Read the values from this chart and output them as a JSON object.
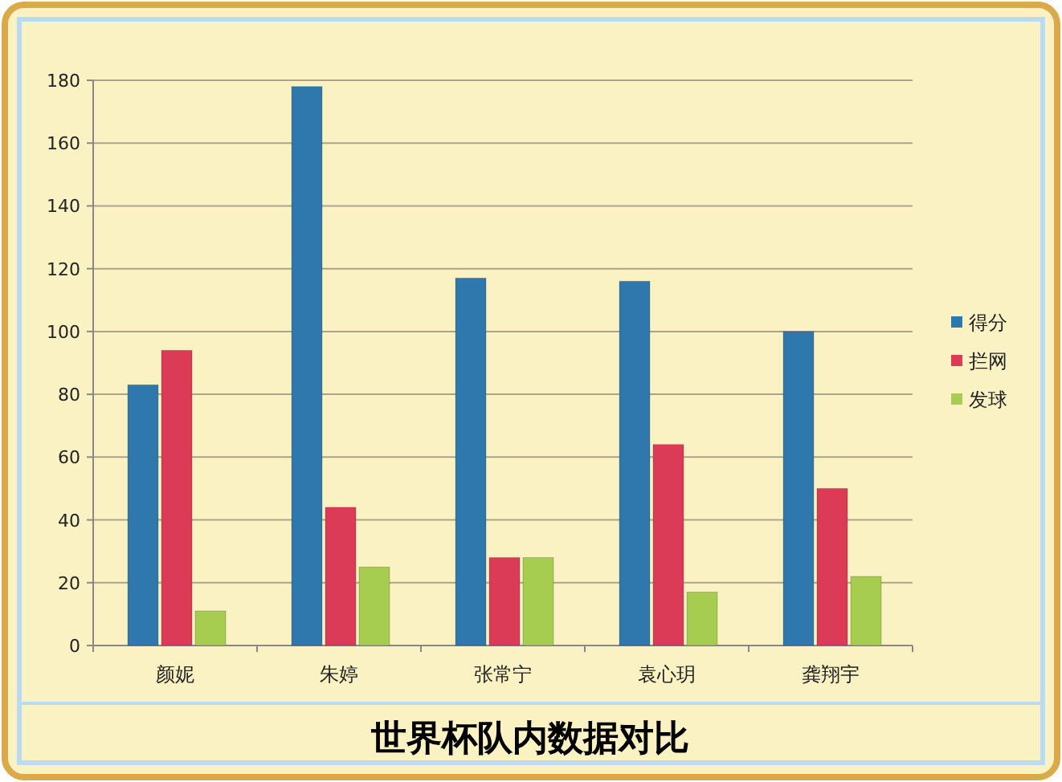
{
  "chart_data": {
    "type": "bar",
    "title": "世界杯队内数据对比",
    "categories": [
      "颜妮",
      "朱婷",
      "张常宁",
      "袁心玥",
      "龚翔宇"
    ],
    "series": [
      {
        "name": "得分",
        "color": "#2f78ad",
        "values": [
          83,
          178,
          117,
          116,
          100
        ]
      },
      {
        "name": "拦网",
        "color": "#dc3b58",
        "values": [
          94,
          44,
          28,
          64,
          50
        ]
      },
      {
        "name": "发球",
        "color": "#a6cc50",
        "values": [
          11,
          25,
          28,
          17,
          22
        ]
      }
    ],
    "ylim": [
      0,
      180
    ],
    "yticks": [
      0,
      20,
      40,
      60,
      80,
      100,
      120,
      140,
      160,
      180
    ],
    "grid": "y",
    "legend": "right"
  }
}
